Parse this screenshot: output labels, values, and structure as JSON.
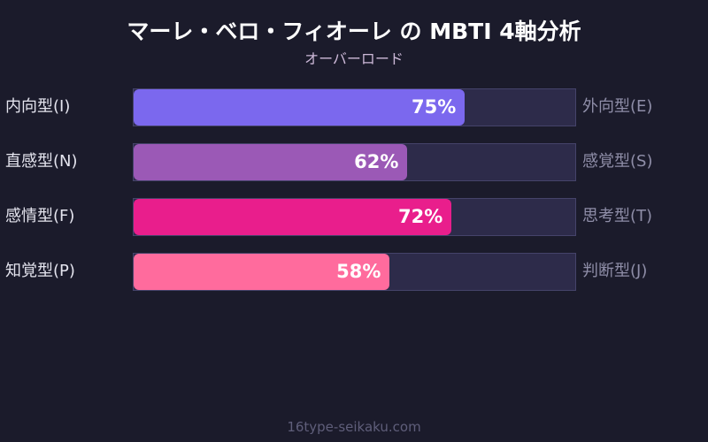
{
  "title": "マーレ・ベロ・フィオーレ の MBTI 4軸分析",
  "subtitle": "オーバーロード",
  "footer": "16type-seikaku.com",
  "rows": [
    {
      "left": "内向型(I)",
      "right": "外向型(E)",
      "value": 75,
      "label": "75%",
      "color": "#7b68ee"
    },
    {
      "left": "直感型(N)",
      "right": "感覚型(S)",
      "value": 62,
      "label": "62%",
      "color": "#9b59b6"
    },
    {
      "left": "感情型(F)",
      "right": "思考型(T)",
      "value": 72,
      "label": "72%",
      "color": "#e91e8c"
    },
    {
      "left": "知覚型(P)",
      "right": "判断型(J)",
      "value": 58,
      "label": "58%",
      "color": "#ff6b9d"
    }
  ],
  "chart_data": {
    "type": "bar",
    "orientation": "horizontal",
    "title": "マーレ・ベロ・フィオーレ の MBTI 4軸分析",
    "subtitle": "オーバーロード",
    "categories": [
      "内向型(I) / 外向型(E)",
      "直感型(N) / 感覚型(S)",
      "感情型(F) / 思考型(T)",
      "知覚型(P) / 判断型(J)"
    ],
    "left_labels": [
      "内向型(I)",
      "直感型(N)",
      "感情型(F)",
      "知覚型(P)"
    ],
    "right_labels": [
      "外向型(E)",
      "感覚型(S)",
      "思考型(T)",
      "判断型(J)"
    ],
    "values": [
      75,
      62,
      72,
      58
    ],
    "colors": [
      "#7b68ee",
      "#9b59b6",
      "#e91e8c",
      "#ff6b9d"
    ],
    "xlim": [
      0,
      100
    ],
    "unit": "%",
    "grid": false,
    "legend": "none"
  }
}
